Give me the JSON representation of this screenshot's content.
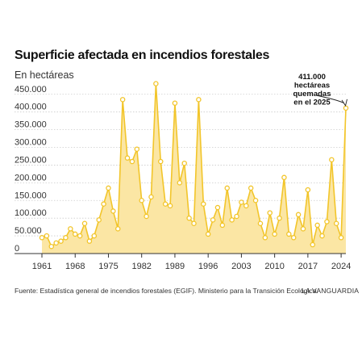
{
  "title": "Superficie afectada en incendios forestales",
  "subtitle": "En hectáreas",
  "source": "Fuente: Estadística general de incendios forestales (EGIF). Ministerio para la Transición Ecológica.",
  "brand": "LA VANGUARDIA",
  "colors": {
    "line": "#f2c52a",
    "fill": "#fbe6a4",
    "marker_fill": "#ffffff",
    "grid": "#cccccc",
    "text": "#333333"
  },
  "chart_data": {
    "type": "area",
    "title": "Superficie afectada en incendios forestales",
    "ylabel": "En hectáreas",
    "xlabel": "",
    "xlim": [
      1961,
      2025
    ],
    "ylim": [
      0,
      470000
    ],
    "grid": true,
    "x_ticks": [
      "1961",
      "1968",
      "1975",
      "1982",
      "1989",
      "1996",
      "2003",
      "2010",
      "2017",
      "2024"
    ],
    "y_ticks": [
      "0",
      "50.000",
      "100.000",
      "150.000",
      "200.000",
      "250.000",
      "300.000",
      "350.000",
      "400.000",
      "450.000"
    ],
    "y_tick_values": [
      0,
      50000,
      100000,
      150000,
      200000,
      250000,
      300000,
      350000,
      400000,
      450000
    ],
    "x_tick_values": [
      1961,
      1968,
      1975,
      1982,
      1989,
      1996,
      2003,
      2010,
      2017,
      2024
    ],
    "x": [
      1961,
      1962,
      1963,
      1964,
      1965,
      1966,
      1967,
      1968,
      1969,
      1970,
      1971,
      1972,
      1973,
      1974,
      1975,
      1976,
      1977,
      1978,
      1979,
      1980,
      1981,
      1982,
      1983,
      1984,
      1985,
      1986,
      1987,
      1988,
      1989,
      1990,
      1991,
      1992,
      1993,
      1994,
      1995,
      1996,
      1997,
      1998,
      1999,
      2000,
      2001,
      2002,
      2003,
      2004,
      2005,
      2006,
      2007,
      2008,
      2009,
      2010,
      2011,
      2012,
      2013,
      2014,
      2015,
      2016,
      2017,
      2018,
      2019,
      2020,
      2021,
      2022,
      2023,
      2024,
      2025
    ],
    "values": [
      45000,
      50000,
      20000,
      30000,
      35000,
      45000,
      70000,
      55000,
      50000,
      85000,
      35000,
      50000,
      95000,
      140000,
      185000,
      120000,
      70000,
      435000,
      270000,
      260000,
      295000,
      150000,
      105000,
      160000,
      480000,
      260000,
      140000,
      135000,
      425000,
      200000,
      255000,
      100000,
      85000,
      435000,
      140000,
      55000,
      95000,
      130000,
      80000,
      185000,
      95000,
      105000,
      145000,
      135000,
      185000,
      150000,
      85000,
      45000,
      115000,
      55000,
      100000,
      215000,
      55000,
      45000,
      110000,
      70000,
      180000,
      25000,
      80000,
      50000,
      90000,
      265000,
      85000,
      45000,
      411000
    ],
    "annotation": {
      "x": 2025,
      "y": 411000,
      "text": [
        "411.000",
        "hectáreas",
        "quemadas",
        "en el 2025"
      ]
    }
  }
}
